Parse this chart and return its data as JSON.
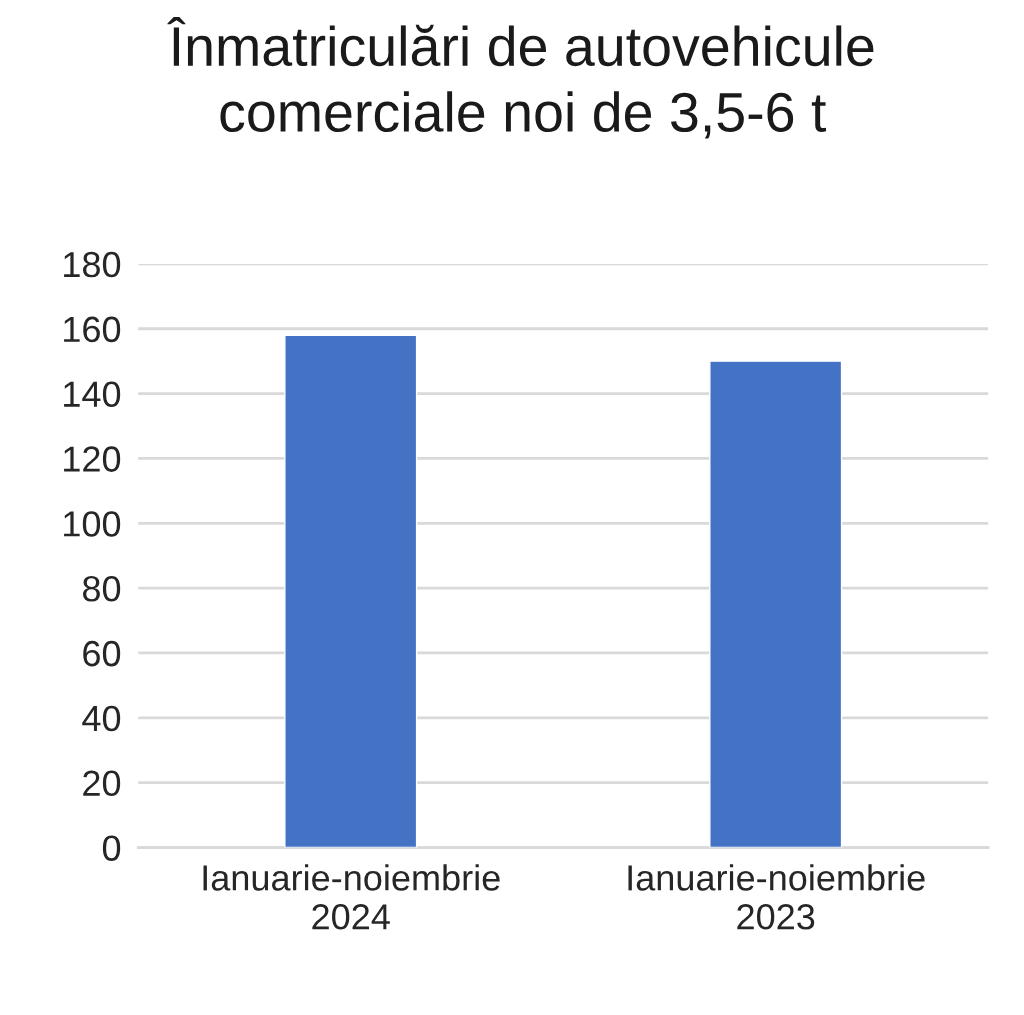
{
  "chart_data": {
    "type": "bar",
    "title": "Înmatriculări de autovehicule\ncomerciale noi de 3,5-6 t",
    "categories": [
      "Ianuarie-noiembrie\n2024",
      "Ianuarie-noiembrie\n2023"
    ],
    "values": [
      158,
      150
    ],
    "color": "#4472c4",
    "ylim": [
      0,
      180
    ],
    "yticks": [
      0,
      20,
      40,
      60,
      80,
      100,
      120,
      140,
      160,
      180
    ],
    "grid": "y"
  }
}
